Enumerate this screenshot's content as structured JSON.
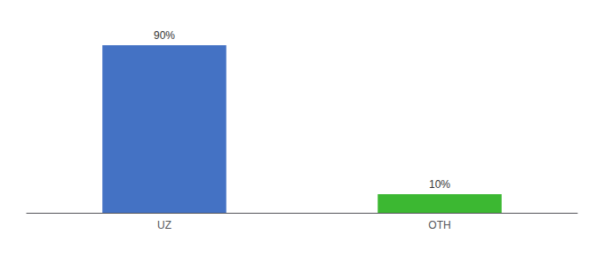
{
  "chart_data": {
    "type": "bar",
    "categories": [
      "UZ",
      "OTH"
    ],
    "values": [
      90,
      10
    ],
    "value_labels": [
      "90%",
      "10%"
    ],
    "data_labels": true,
    "colors": [
      "#4472c4",
      "#3cb832"
    ],
    "ylim": [
      0,
      100
    ],
    "tick_labels": "x",
    "grid": false
  }
}
